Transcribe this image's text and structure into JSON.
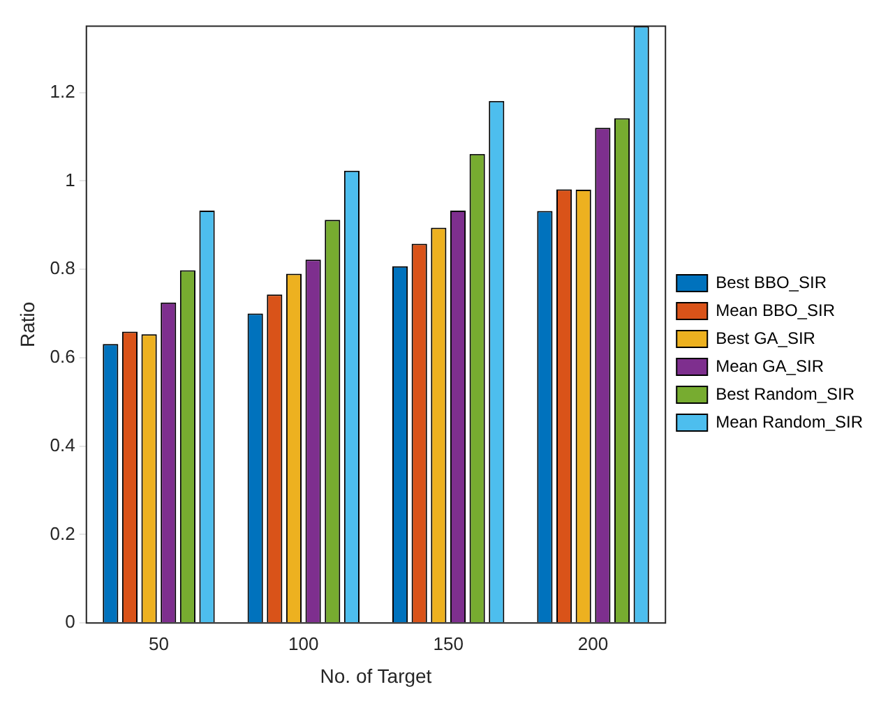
{
  "chart_data": {
    "type": "bar",
    "xlabel": "No. of Target",
    "ylabel": "Ratio",
    "categories": [
      "50",
      "100",
      "150",
      "200"
    ],
    "ylim": [
      0,
      1.35
    ],
    "yticks": [
      0,
      0.2,
      0.4,
      0.6,
      0.8,
      1,
      1.2
    ],
    "grid": false,
    "legend": "right",
    "series": [
      {
        "name": "Best BBO_SIR",
        "color": "#0072bd",
        "values": [
          0.631,
          0.7,
          0.807,
          0.932
        ]
      },
      {
        "name": "Mean BBO_SIR",
        "color": "#d95319",
        "values": [
          0.659,
          0.743,
          0.858,
          0.981
        ]
      },
      {
        "name": "Best GA_SIR",
        "color": "#edb120",
        "values": [
          0.653,
          0.79,
          0.894,
          0.98
        ]
      },
      {
        "name": "Mean GA_SIR",
        "color": "#7e2f8e",
        "values": [
          0.725,
          0.822,
          0.933,
          1.12
        ]
      },
      {
        "name": "Best Random_SIR",
        "color": "#77ac30",
        "values": [
          0.798,
          0.912,
          1.061,
          1.142
        ]
      },
      {
        "name": "Mean Random_SIR",
        "color": "#4dbeee",
        "values": [
          0.933,
          1.023,
          1.181,
          1.35
        ]
      }
    ]
  }
}
